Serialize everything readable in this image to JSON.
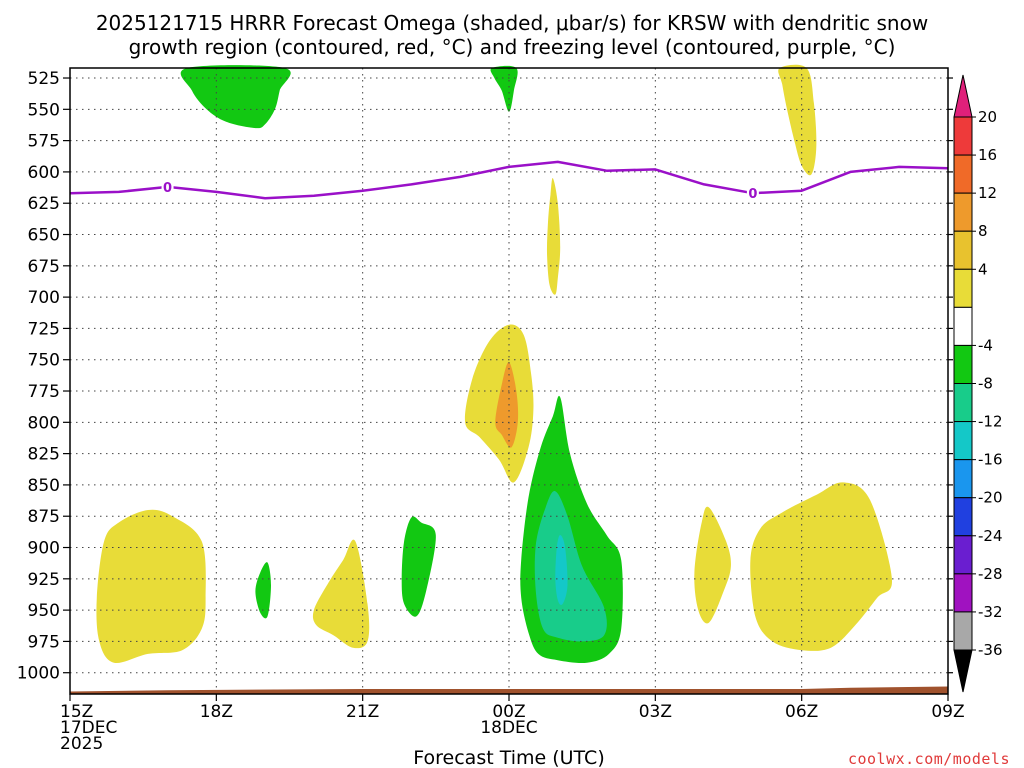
{
  "chart_data": {
    "type": "heatmap",
    "title_line1": "2025121715 HRRR Forecast Omega (shaded, μbar/s) for KRSW with dendritic snow",
    "title_line2": "growth region (contoured, red, °C) and freezing level (contoured, purple, °C)",
    "xlabel": "Forecast Time (UTC)",
    "x_ticks": [
      {
        "hour": 0,
        "lines": [
          "15Z",
          "17DEC",
          "2025"
        ]
      },
      {
        "hour": 3,
        "lines": [
          "18Z"
        ]
      },
      {
        "hour": 6,
        "lines": [
          "21Z"
        ]
      },
      {
        "hour": 9,
        "lines": [
          "00Z",
          "18DEC"
        ]
      },
      {
        "hour": 12,
        "lines": [
          "03Z"
        ]
      },
      {
        "hour": 15,
        "lines": [
          "06Z"
        ]
      },
      {
        "hour": 18,
        "lines": [
          "09Z"
        ]
      }
    ],
    "x_range_hours": [
      0,
      18
    ],
    "y_range_mb": [
      1017,
      517
    ],
    "y_ticks_mb": [
      525,
      550,
      575,
      600,
      625,
      650,
      675,
      700,
      725,
      750,
      775,
      800,
      825,
      850,
      875,
      900,
      925,
      950,
      975,
      1000
    ],
    "grid": true,
    "colorbar": {
      "labels": [
        "20",
        "16",
        "12",
        "8",
        "4",
        "-4",
        "-8",
        "-12",
        "-16",
        "-20",
        "-24",
        "-28",
        "-32",
        "-36"
      ],
      "bins": [
        {
          "range": "above 20",
          "color": "#e0207a"
        },
        {
          "range": "16 to 20",
          "color": "#ee3a3a"
        },
        {
          "range": "12 to 16",
          "color": "#f06a28"
        },
        {
          "range": "8 to 12",
          "color": "#ee9a2c"
        },
        {
          "range": "4 to 8",
          "color": "#e8c22e"
        },
        {
          "range": "0 to 4",
          "color": "#e8dc38"
        },
        {
          "range": "-4 to 4",
          "color": "#ffffff"
        },
        {
          "range": "-8 to -4",
          "color": "#12c812"
        },
        {
          "range": "-12 to -8",
          "color": "#18cc8a"
        },
        {
          "range": "-16 to -12",
          "color": "#14c8c8"
        },
        {
          "range": "-20 to -16",
          "color": "#1a96ee"
        },
        {
          "range": "-24 to -20",
          "color": "#2040e0"
        },
        {
          "range": "-28 to -24",
          "color": "#6a1ed0"
        },
        {
          "range": "-32 to -28",
          "color": "#a012c0"
        },
        {
          "range": "-36 to -32",
          "color": "#a8a8a8"
        },
        {
          "range": "below -36",
          "color": "#000000"
        }
      ]
    },
    "omega_regions": [
      {
        "name": "green-top-1",
        "value_range": "-8 to -4",
        "color": "#12c812",
        "points": [
          [
            2.4,
            517
          ],
          [
            4.4,
            517
          ],
          [
            4.3,
            535
          ],
          [
            4.2,
            550
          ],
          [
            4.0,
            562
          ],
          [
            3.8,
            565
          ],
          [
            3.2,
            560
          ],
          [
            2.8,
            550
          ],
          [
            2.5,
            535
          ]
        ]
      },
      {
        "name": "green-top-2",
        "value_range": "-8 to -4",
        "color": "#12c812",
        "points": [
          [
            8.65,
            517
          ],
          [
            9.15,
            517
          ],
          [
            9.1,
            535
          ],
          [
            9.0,
            552
          ],
          [
            8.85,
            535
          ],
          [
            8.7,
            525
          ]
        ]
      },
      {
        "name": "yellow-top-right",
        "value_range": "4 to 8",
        "color": "#e8dc38",
        "points": [
          [
            14.55,
            517
          ],
          [
            15.1,
            517
          ],
          [
            15.25,
            545
          ],
          [
            15.3,
            580
          ],
          [
            15.2,
            602
          ],
          [
            15.0,
            595
          ],
          [
            14.85,
            575
          ],
          [
            14.7,
            550
          ],
          [
            14.6,
            530
          ]
        ]
      },
      {
        "name": "yellow-thin-mid",
        "value_range": "4 to 8",
        "color": "#e8dc38",
        "points": [
          [
            9.9,
            605
          ],
          [
            10.0,
            625
          ],
          [
            10.05,
            660
          ],
          [
            10.0,
            685
          ],
          [
            9.95,
            698
          ],
          [
            9.83,
            690
          ],
          [
            9.78,
            665
          ],
          [
            9.8,
            640
          ],
          [
            9.85,
            618
          ]
        ]
      },
      {
        "name": "yellow-mid",
        "value_range": "4 to 8",
        "color": "#e8dc38",
        "points": [
          [
            8.1,
            800
          ],
          [
            8.25,
            765
          ],
          [
            8.6,
            735
          ],
          [
            9.0,
            722
          ],
          [
            9.3,
            730
          ],
          [
            9.45,
            760
          ],
          [
            9.5,
            790
          ],
          [
            9.4,
            820
          ],
          [
            9.1,
            848
          ],
          [
            8.8,
            830
          ],
          [
            8.4,
            812
          ]
        ]
      },
      {
        "name": "orange-mid",
        "value_range": "8 to 12",
        "color": "#ee9a2c",
        "points": [
          [
            8.72,
            800
          ],
          [
            8.85,
            770
          ],
          [
            9.0,
            752
          ],
          [
            9.15,
            775
          ],
          [
            9.18,
            800
          ],
          [
            9.05,
            820
          ],
          [
            8.85,
            810
          ]
        ]
      },
      {
        "name": "green-main",
        "value_range": "-8 to -4",
        "color": "#12c812",
        "points": [
          [
            9.25,
            910
          ],
          [
            9.4,
            860
          ],
          [
            9.65,
            820
          ],
          [
            9.9,
            795
          ],
          [
            10.05,
            780
          ],
          [
            10.25,
            825
          ],
          [
            10.6,
            865
          ],
          [
            11.0,
            890
          ],
          [
            11.3,
            910
          ],
          [
            11.3,
            965
          ],
          [
            11.05,
            985
          ],
          [
            10.6,
            992
          ],
          [
            10.0,
            990
          ],
          [
            9.6,
            985
          ],
          [
            9.4,
            968
          ],
          [
            9.25,
            940
          ]
        ]
      },
      {
        "name": "teal-main",
        "value_range": "-12 to -8",
        "color": "#18cc8a",
        "points": [
          [
            9.55,
            898
          ],
          [
            9.75,
            868
          ],
          [
            9.95,
            855
          ],
          [
            10.2,
            875
          ],
          [
            10.5,
            915
          ],
          [
            10.95,
            948
          ],
          [
            10.95,
            970
          ],
          [
            10.5,
            975
          ],
          [
            10.0,
            972
          ],
          [
            9.7,
            965
          ],
          [
            9.55,
            935
          ]
        ]
      },
      {
        "name": "cyan-main",
        "value_range": "-16 to -12",
        "color": "#14c8c8",
        "points": [
          [
            9.95,
            925
          ],
          [
            9.98,
            900
          ],
          [
            10.05,
            890
          ],
          [
            10.15,
            900
          ],
          [
            10.2,
            930
          ],
          [
            10.1,
            945
          ],
          [
            10.0,
            942
          ]
        ]
      },
      {
        "name": "green-mid-small",
        "value_range": "-8 to -4",
        "color": "#12c812",
        "points": [
          [
            6.8,
            925
          ],
          [
            6.85,
            895
          ],
          [
            7.0,
            876
          ],
          [
            7.2,
            880
          ],
          [
            7.5,
            890
          ],
          [
            7.3,
            935
          ],
          [
            7.1,
            955
          ],
          [
            6.85,
            945
          ]
        ]
      },
      {
        "name": "green-tiny",
        "value_range": "-8 to -4",
        "color": "#12c812",
        "points": [
          [
            3.8,
            935
          ],
          [
            3.9,
            920
          ],
          [
            4.05,
            912
          ],
          [
            4.12,
            930
          ],
          [
            4.05,
            955
          ],
          [
            3.9,
            952
          ]
        ]
      },
      {
        "name": "yellow-left",
        "value_range": "4 to 8",
        "color": "#e8dc38",
        "points": [
          [
            0.55,
            940
          ],
          [
            0.7,
            895
          ],
          [
            1.0,
            880
          ],
          [
            1.6,
            870
          ],
          [
            2.1,
            875
          ],
          [
            2.7,
            895
          ],
          [
            2.78,
            940
          ],
          [
            2.7,
            965
          ],
          [
            2.3,
            982
          ],
          [
            1.6,
            985
          ],
          [
            0.9,
            992
          ],
          [
            0.6,
            975
          ]
        ]
      },
      {
        "name": "yellow-left-mid",
        "value_range": "4 to 8",
        "color": "#e8dc38",
        "points": [
          [
            5.0,
            950
          ],
          [
            5.3,
            928
          ],
          [
            5.6,
            910
          ],
          [
            5.85,
            895
          ],
          [
            6.1,
            945
          ],
          [
            6.1,
            975
          ],
          [
            5.8,
            980
          ],
          [
            5.4,
            970
          ],
          [
            5.05,
            962
          ]
        ]
      },
      {
        "name": "yellow-right-small",
        "value_range": "4 to 8",
        "color": "#e8dc38",
        "points": [
          [
            12.8,
            920
          ],
          [
            12.95,
            880
          ],
          [
            13.1,
            868
          ],
          [
            13.45,
            895
          ],
          [
            13.55,
            915
          ],
          [
            13.4,
            935
          ],
          [
            13.1,
            960
          ],
          [
            12.88,
            950
          ]
        ]
      },
      {
        "name": "yellow-right",
        "value_range": "4 to 8",
        "color": "#e8dc38",
        "points": [
          [
            13.95,
            910
          ],
          [
            14.15,
            885
          ],
          [
            14.6,
            872
          ],
          [
            15.3,
            858
          ],
          [
            15.85,
            848
          ],
          [
            16.4,
            862
          ],
          [
            16.85,
            925
          ],
          [
            16.55,
            940
          ],
          [
            16.1,
            962
          ],
          [
            15.6,
            980
          ],
          [
            15.0,
            982
          ],
          [
            14.4,
            975
          ],
          [
            14.05,
            955
          ]
        ]
      }
    ],
    "freezing_level": {
      "label": "0",
      "color": "#9a10c8",
      "points": [
        [
          0,
          617
        ],
        [
          1.0,
          616
        ],
        [
          2.0,
          612
        ],
        [
          3.0,
          616
        ],
        [
          4.0,
          621
        ],
        [
          5.0,
          619
        ],
        [
          6.0,
          615
        ],
        [
          7.0,
          610
        ],
        [
          8.0,
          604
        ],
        [
          9.0,
          596
        ],
        [
          10.0,
          592
        ],
        [
          11.0,
          599
        ],
        [
          12.0,
          598
        ],
        [
          13.0,
          610
        ],
        [
          14.0,
          617
        ],
        [
          15.0,
          615
        ],
        [
          16.0,
          600
        ],
        [
          17.0,
          596
        ],
        [
          18.0,
          597
        ]
      ],
      "label_hours": [
        2.0,
        14.0
      ]
    },
    "terrain": {
      "color": "#a0522d",
      "points": [
        [
          0,
          1015
        ],
        [
          2,
          1014
        ],
        [
          6,
          1013
        ],
        [
          9,
          1013
        ],
        [
          12,
          1013
        ],
        [
          15,
          1013
        ],
        [
          16,
          1012
        ],
        [
          18,
          1011
        ]
      ]
    }
  },
  "credit": "coolwx.com/models"
}
